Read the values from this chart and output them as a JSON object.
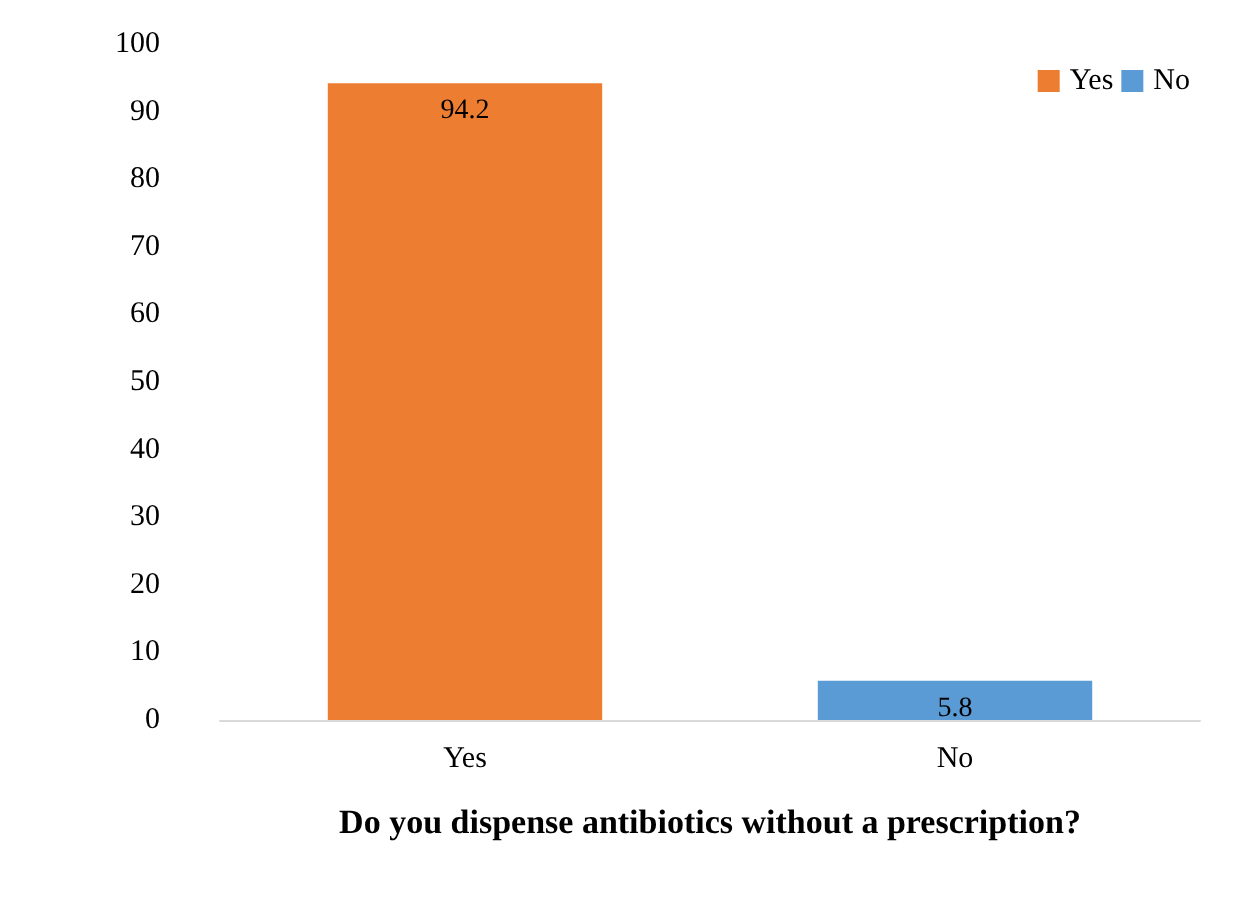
{
  "chart_data": {
    "type": "bar",
    "xlabel": "Do you dispense antibiotics without a prescription?",
    "categories": [
      "Yes",
      "No"
    ],
    "series": [
      {
        "name": "Yes",
        "color": "#ed7d31",
        "values": [
          94.2,
          null
        ]
      },
      {
        "name": "No",
        "color": "#5b9bd5",
        "values": [
          null,
          5.8
        ]
      }
    ],
    "stacked": true,
    "ylim": [
      0,
      100
    ],
    "yticks": [
      0,
      10,
      20,
      30,
      40,
      50,
      60,
      70,
      80,
      90,
      100
    ],
    "grid": false,
    "legend": "top right",
    "data_labels": true
  }
}
